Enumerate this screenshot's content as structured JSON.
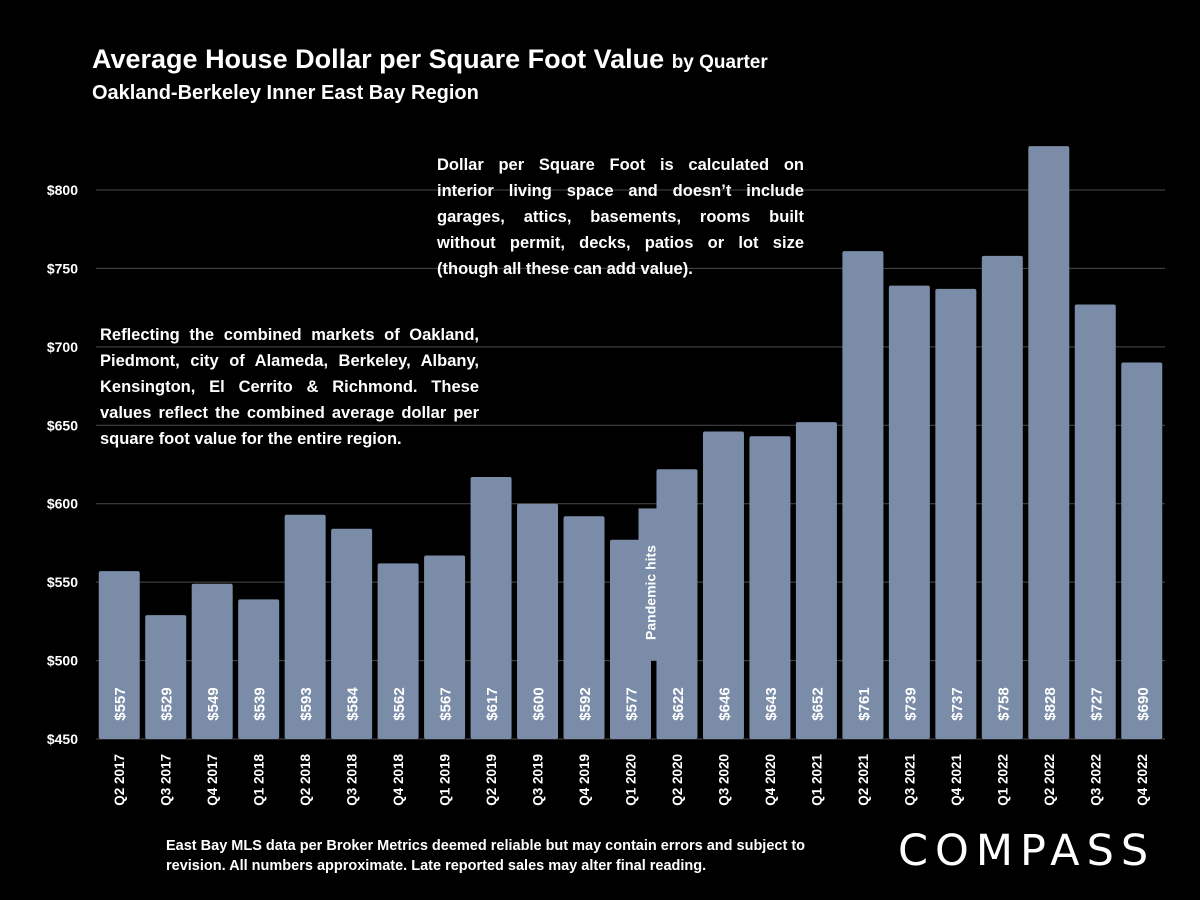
{
  "header": {
    "title": "Average House Dollar per Square Foot Value",
    "title_suffix": "by Quarter",
    "subtitle": "Oakland-Berkeley Inner East Bay Region"
  },
  "notes": {
    "calc_note": "Dollar per Square Foot is calculated on interior living space and doesn’t include garages, attics, basements, rooms built without permit, decks, patios or lot size (though all these can add value).",
    "region_note": "Reflecting the combined markets of Oakland, Piedmont, city of Alameda, Berkeley, Albany, Kensington, El Cerrito & Richmond. These values reflect the combined average dollar per square foot value for the entire region."
  },
  "footer": {
    "disclaimer": "East Bay MLS data per Broker Metrics deemed reliable but may contain errors and subject to revision. All numbers approximate. Late reported sales may alter final reading.",
    "logo": "COMPASS"
  },
  "chart_data": {
    "type": "bar",
    "categories": [
      "Q2 2017",
      "Q3 2017",
      "Q4 2017",
      "Q1 2018",
      "Q2 2018",
      "Q3 2018",
      "Q4 2018",
      "Q1 2019",
      "Q2 2019",
      "Q3 2019",
      "Q4 2019",
      "Q1 2020",
      "Q2 2020",
      "Q3 2020",
      "Q4 2020",
      "Q1 2021",
      "Q2 2021",
      "Q3 2021",
      "Q4 2021",
      "Q1 2022",
      "Q2 2022",
      "Q3 2022",
      "Q4 2022"
    ],
    "values": [
      557,
      529,
      549,
      539,
      593,
      584,
      562,
      567,
      617,
      600,
      592,
      577,
      622,
      646,
      643,
      652,
      761,
      739,
      737,
      758,
      828,
      727,
      690
    ],
    "data_labels": [
      "$557",
      "$529",
      "$549",
      "$539",
      "$593",
      "$584",
      "$562",
      "$567",
      "$617",
      "$600",
      "$592",
      "$577",
      "$622",
      "$646",
      "$643",
      "$652",
      "$761",
      "$739",
      "$737",
      "$758",
      "$828",
      "$727",
      "$690"
    ],
    "ylim": [
      450,
      830
    ],
    "yticks": [
      450,
      500,
      550,
      600,
      650,
      700,
      750,
      800
    ],
    "ytick_labels": [
      "$450",
      "$500",
      "$550",
      "$600",
      "$650",
      "$700",
      "$750",
      "$800"
    ],
    "grid": true,
    "bar_color": "#7a8ca8",
    "annotation": {
      "text": "Pandemic hits",
      "category": "Q1 2020"
    }
  }
}
